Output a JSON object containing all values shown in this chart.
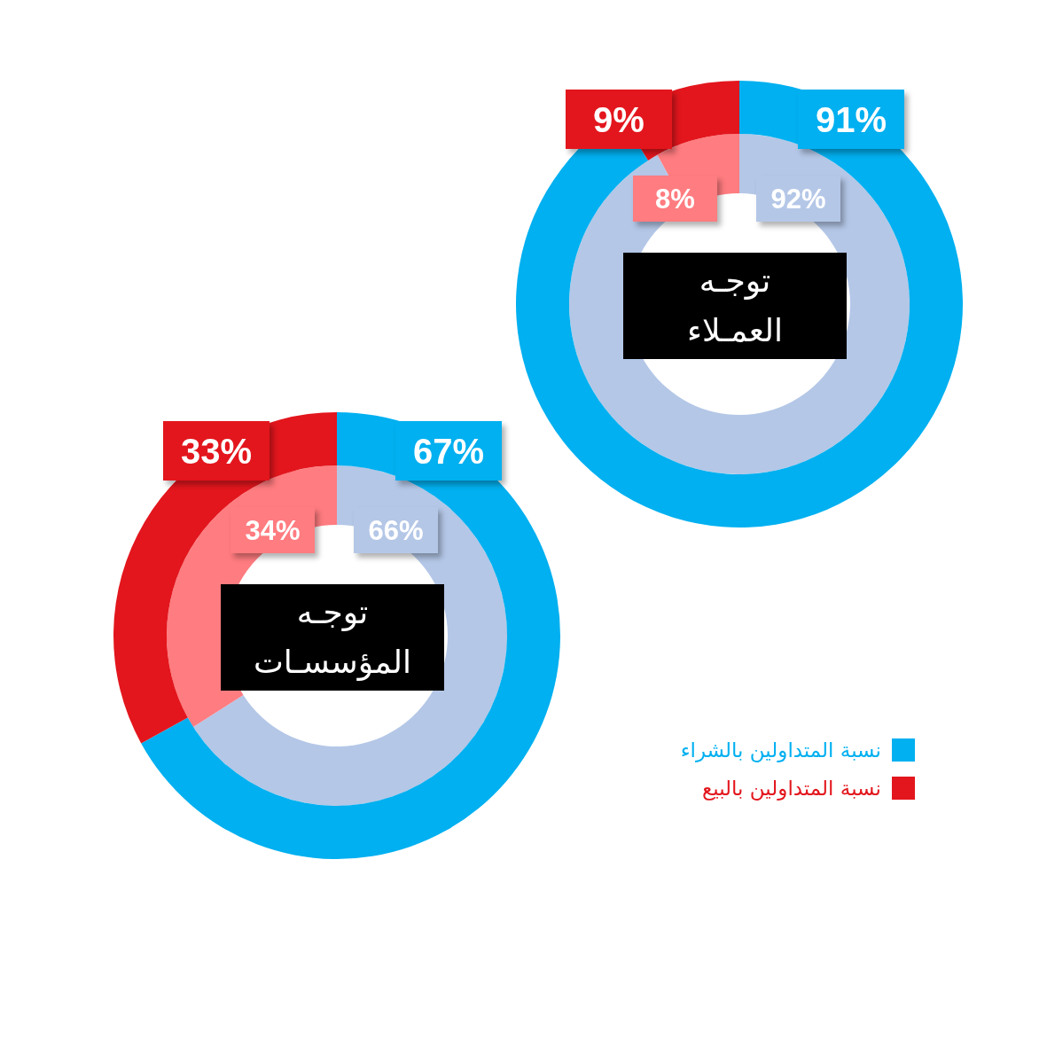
{
  "chart_data": [
    {
      "type": "donut",
      "title": "توجـه\nالعمـلاء",
      "series": [
        {
          "values": [
            92,
            8
          ],
          "colors": [
            "#b4c7e7",
            "#ff7c80"
          ],
          "value_labels": [
            "92%",
            "8%"
          ]
        },
        {
          "values": [
            91,
            9
          ],
          "colors": [
            "#00b0f0",
            "#e3161d"
          ],
          "value_labels": [
            "91%",
            "9%"
          ]
        }
      ]
    },
    {
      "type": "donut",
      "title": "توجـه\nالمؤسسـات",
      "categories": [
        "نسبة المتداولين بالشراء",
        "نسبة المتداولين بالبيع"
      ],
      "series": [
        {
          "values": [
            66,
            34
          ],
          "colors": [
            "#b4c7e7",
            "#ff7c80"
          ],
          "value_labels": [
            "66%",
            "34%"
          ]
        },
        {
          "values": [
            67,
            33
          ],
          "colors": [
            "#00b0f0",
            "#e3161d"
          ],
          "value_labels": [
            "67%",
            "33%"
          ]
        }
      ],
      "legend": "right"
    }
  ]
}
